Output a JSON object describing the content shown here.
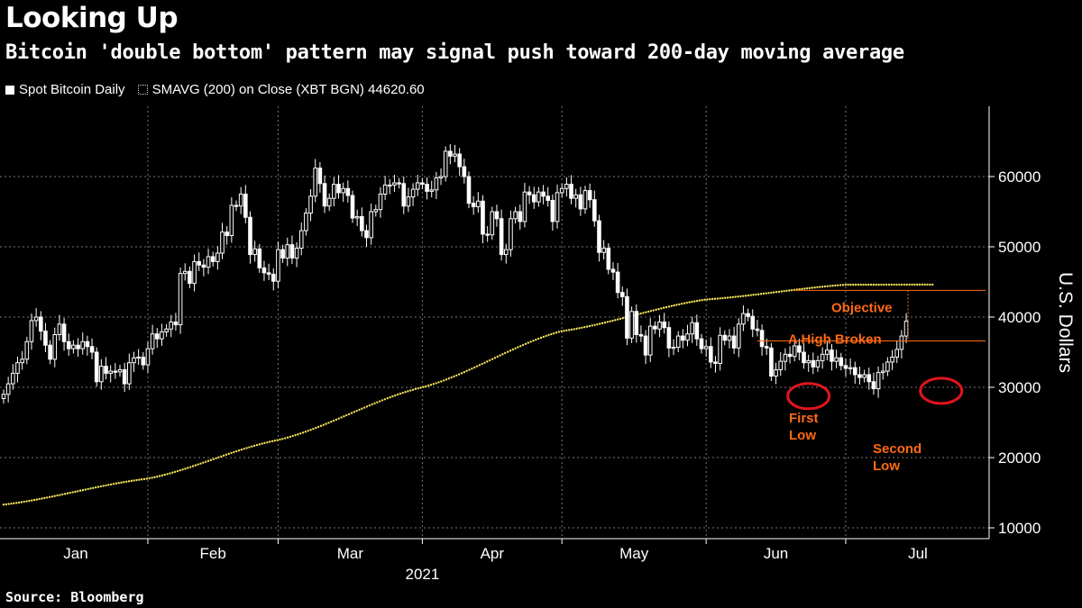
{
  "title": "Looking Up",
  "subtitle": "Bitcoin 'double bottom' pattern may signal push toward 200-day moving average",
  "legend": {
    "series1": "Spot Bitcoin Daily",
    "series2": "SMAVG (200)  on Close (XBT BGN) 44620.60"
  },
  "source": "Source: Bloomberg",
  "colors": {
    "background": "#000000",
    "candle": "#ffffff",
    "sma": "#f2e45a",
    "annotation": "#ff6a13",
    "circle": "#e0141e"
  },
  "chart_data": {
    "type": "line",
    "title": "Looking Up",
    "ylabel": "U.S. Dollars",
    "ylim": [
      8000,
      68000
    ],
    "yticks": [
      10000,
      20000,
      30000,
      40000,
      50000,
      60000
    ],
    "ytick_labels": [
      "10000",
      "20000",
      "30000",
      "40000",
      "50000",
      "60000"
    ],
    "x_months": [
      "Jan",
      "Feb",
      "Mar",
      "Apr",
      "May",
      "Jun",
      "Jul"
    ],
    "x_year": "2021",
    "grid": true,
    "series": [
      {
        "name": "Spot Bitcoin Daily",
        "style": "candlestick",
        "x_start": "2021-01-01",
        "values": [
          29000,
          30500,
          32000,
          33500,
          34000,
          36500,
          39500,
          40000,
          38000,
          36000,
          34000,
          37500,
          39000,
          36500,
          35500,
          36000,
          35500,
          36500,
          35800,
          35000,
          30800,
          33000,
          32000,
          32300,
          32200,
          32500,
          30500,
          33500,
          34200,
          34300,
          33200,
          35500,
          37600,
          36900,
          37900,
          38300,
          39300,
          38900,
          46200,
          46500,
          44800,
          47900,
          47400,
          47100,
          48600,
          47900,
          49100,
          52100,
          51600,
          55900,
          55800,
          57500,
          54200,
          48900,
          49700,
          47000,
          46300,
          46100,
          45100,
          49600,
          48400,
          50300,
          48400,
          49800,
          52300,
          54800,
          57200,
          61200,
          59000,
          55800,
          56900,
          58900,
          57700,
          58300,
          57300,
          54100,
          54300,
          52300,
          51300,
          55000,
          55300,
          57500,
          58800,
          58800,
          59100,
          59000,
          55800,
          57100,
          58200,
          59100,
          58900,
          57900,
          58100,
          59800,
          60000,
          63600,
          62900,
          63200,
          61400,
          60000,
          56200,
          55700,
          56500,
          51800,
          51700,
          55000,
          54000,
          48900,
          49600,
          54000,
          55000,
          53600,
          57800,
          57400,
          56400,
          57800,
          57200,
          56600,
          53600,
          57700,
          58300,
          58900,
          56900,
          57400,
          55400,
          58000,
          56700,
          53700,
          49200,
          49800,
          46800,
          46400,
          43500,
          42900,
          37000,
          40800,
          37500,
          37300,
          34600,
          38700,
          38300,
          39300,
          38500,
          35600,
          35700,
          37300,
          36700,
          37600,
          39200,
          36900,
          35500,
          35800,
          33600,
          33400,
          37400,
          36700,
          37300,
          35600,
          39000,
          40500,
          40100,
          38300,
          38100,
          35800,
          35600,
          31600,
          32500,
          33700,
          34700,
          34400,
          35900,
          35000,
          33500,
          33800,
          32900,
          33800,
          34700,
          35300,
          33700,
          34200,
          33100,
          32700,
          32800,
          31800,
          31400,
          31800,
          30800,
          29800,
          32100,
          32300,
          33600,
          34300,
          35400,
          37300,
          39400
        ]
      },
      {
        "name": "SMAVG (200)  on Close (XBT BGN) 44620.60",
        "style": "dotted",
        "points": [
          [
            0,
            13300
          ],
          [
            31,
            17000
          ],
          [
            59,
            22500
          ],
          [
            90,
            30000
          ],
          [
            120,
            38000
          ],
          [
            151,
            42500
          ],
          [
            181,
            44600
          ],
          [
            200,
            44620
          ]
        ]
      }
    ],
    "annotations": {
      "objective": {
        "label": "Objective",
        "value": 43800
      },
      "high_broken": {
        "label": "A High Broken",
        "value": 36600
      },
      "first_low": {
        "label": "First\nLow",
        "value": 29000
      },
      "second_low": {
        "label": "Second\nLow",
        "value": 29500
      }
    }
  }
}
